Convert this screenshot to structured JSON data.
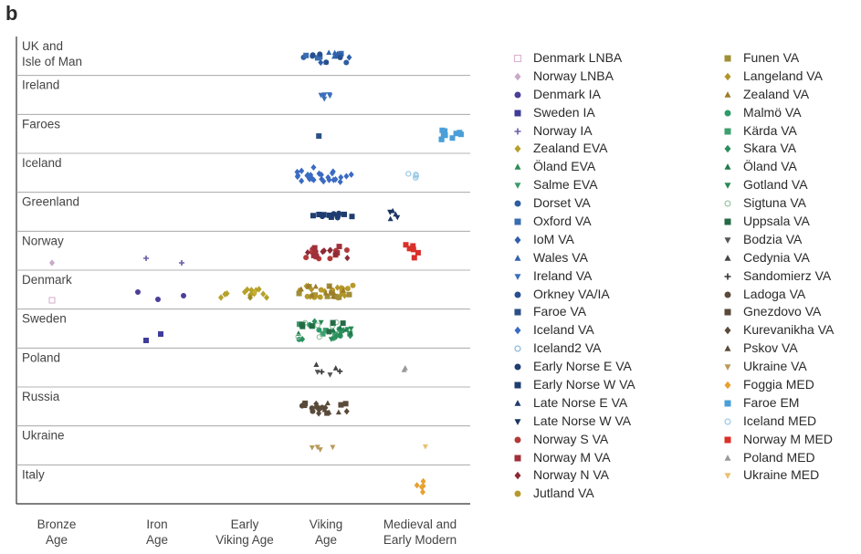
{
  "panel_label": "b",
  "chart_data": {
    "type": "scatter",
    "title": "",
    "xlabel": "",
    "ylabel": "",
    "x_categories": [
      [
        "Bronze",
        "Age"
      ],
      [
        "Iron",
        "Age"
      ],
      [
        "Early",
        "Viking Age"
      ],
      [
        "Viking",
        "Age"
      ],
      [
        "Medieval and",
        "Early Modern"
      ]
    ],
    "y_categories": [
      [
        "UK and",
        "Isle of Man"
      ],
      [
        "Ireland"
      ],
      [
        "Faroes"
      ],
      [
        "Iceland"
      ],
      [
        "Greenland"
      ],
      [
        "Norway"
      ],
      [
        "Denmark"
      ],
      [
        "Sweden"
      ],
      [
        "Poland"
      ],
      [
        "Russia"
      ],
      [
        "Ukraine"
      ],
      [
        "Italy"
      ]
    ],
    "grid": "horizontal separators between regions",
    "legend_position": "right, two columns",
    "series": [
      {
        "name": "Denmark LNBA",
        "color": "#d9b3d0",
        "marker": "square-open",
        "points": [
          [
            0,
            6,
            0.1
          ]
        ]
      },
      {
        "name": "Norway LNBA",
        "color": "#c7a9c9",
        "marker": "diamond",
        "points": [
          [
            0,
            5,
            0.2
          ]
        ]
      },
      {
        "name": "Denmark IA",
        "color": "#4a3f98",
        "marker": "circle",
        "points": [
          [
            1,
            6,
            -0.1
          ],
          [
            1,
            6,
            -0.35
          ],
          [
            1,
            6,
            0.25
          ]
        ]
      },
      {
        "name": "Sweden IA",
        "color": "#3f3c9a",
        "marker": "square",
        "points": [
          [
            1,
            6,
            0.3
          ],
          [
            1,
            7,
            0.25
          ],
          [
            1,
            7,
            0.6
          ]
        ]
      },
      {
        "name": "Norway IA",
        "color": "#6c5ca8",
        "marker": "plus",
        "points": [
          [
            1,
            5,
            -0.2
          ],
          [
            1,
            5,
            0.1
          ]
        ]
      },
      {
        "name": "Zealand EVA",
        "color": "#b6a12a",
        "marker": "diamond",
        "points": [
          [
            2,
            6,
            0
          ]
        ]
      },
      {
        "name": "Öland EVA",
        "color": "#2e8b57",
        "marker": "triangle-up",
        "points": []
      },
      {
        "name": "Salme EVA",
        "color": "#3a9d6a",
        "marker": "triangle-down",
        "points": []
      },
      {
        "name": "Dorset VA",
        "color": "#2d5fa0",
        "marker": "circle",
        "points": [
          [
            3,
            0,
            0
          ]
        ]
      },
      {
        "name": "Oxford VA",
        "color": "#3a6cb0",
        "marker": "square",
        "points": [
          [
            3,
            0,
            0
          ]
        ]
      },
      {
        "name": "IoM VA",
        "color": "#2f5faa",
        "marker": "diamond",
        "points": [
          [
            3,
            0,
            0
          ]
        ]
      },
      {
        "name": "Wales VA",
        "color": "#2f62b0",
        "marker": "triangle-up",
        "points": [
          [
            3,
            0,
            0
          ]
        ]
      },
      {
        "name": "Ireland VA",
        "color": "#3b6fbb",
        "marker": "triangle-down",
        "points": [
          [
            3,
            1,
            0
          ]
        ]
      },
      {
        "name": "Orkney VA/IA",
        "color": "#274f8f",
        "marker": "circle",
        "points": [
          [
            3,
            0,
            0
          ]
        ]
      },
      {
        "name": "Faroe VA",
        "color": "#2b4f86",
        "marker": "square",
        "points": [
          [
            3,
            2,
            0
          ]
        ]
      },
      {
        "name": "Iceland VA",
        "color": "#3a6bc2",
        "marker": "diamond",
        "points": [
          [
            3,
            3,
            0
          ]
        ]
      },
      {
        "name": "Iceland2 VA",
        "color": "#7fb0d8",
        "marker": "circle-open",
        "points": []
      },
      {
        "name": "Early Norse E VA",
        "color": "#1f3d70",
        "marker": "circle",
        "points": [
          [
            3,
            4,
            0
          ]
        ]
      },
      {
        "name": "Early Norse W VA",
        "color": "#1f3d70",
        "marker": "square",
        "points": [
          [
            3,
            4,
            0
          ]
        ]
      },
      {
        "name": "Late Norse E VA",
        "color": "#1f3a6a",
        "marker": "triangle-up",
        "points": [
          [
            4,
            4,
            0
          ]
        ]
      },
      {
        "name": "Late Norse W VA",
        "color": "#1a335e",
        "marker": "triangle-down",
        "points": [
          [
            4,
            4,
            0
          ]
        ]
      },
      {
        "name": "Norway S VA",
        "color": "#b23a3a",
        "marker": "circle",
        "points": [
          [
            3,
            5,
            0
          ]
        ]
      },
      {
        "name": "Norway M VA",
        "color": "#a0303a",
        "marker": "square",
        "points": [
          [
            3,
            5,
            0
          ]
        ]
      },
      {
        "name": "Norway N VA",
        "color": "#8c2a34",
        "marker": "diamond",
        "points": [
          [
            3,
            5,
            0
          ]
        ]
      },
      {
        "name": "Jutland VA",
        "color": "#b79a2b",
        "marker": "circle",
        "points": [
          [
            3,
            6,
            0
          ]
        ]
      },
      {
        "name": "Funen VA",
        "color": "#a08f36",
        "marker": "square",
        "points": [
          [
            3,
            6,
            0
          ]
        ]
      },
      {
        "name": "Langeland VA",
        "color": "#b3962a",
        "marker": "diamond",
        "points": [
          [
            3,
            6,
            0
          ]
        ]
      },
      {
        "name": "Zealand VA",
        "color": "#9c7c2a",
        "marker": "triangle-up",
        "points": [
          [
            3,
            6,
            0
          ]
        ]
      },
      {
        "name": "Malmö VA",
        "color": "#2f9a6a",
        "marker": "circle",
        "points": [
          [
            3,
            7,
            0
          ]
        ]
      },
      {
        "name": "Kärda VA",
        "color": "#3da06e",
        "marker": "square",
        "points": [
          [
            3,
            7,
            0
          ]
        ]
      },
      {
        "name": "Skara VA",
        "color": "#2c8f5e",
        "marker": "diamond",
        "points": [
          [
            3,
            7,
            0
          ]
        ]
      },
      {
        "name": "Öland VA",
        "color": "#1f7a4a",
        "marker": "triangle-up",
        "points": [
          [
            3,
            7,
            0
          ]
        ]
      },
      {
        "name": "Gotland VA",
        "color": "#2a8a55",
        "marker": "triangle-down",
        "points": [
          [
            3,
            7,
            0
          ]
        ]
      },
      {
        "name": "Sigtuna VA",
        "color": "#8fbf9f",
        "marker": "circle-open",
        "points": [
          [
            3,
            7,
            0
          ]
        ]
      },
      {
        "name": "Uppsala VA",
        "color": "#246b45",
        "marker": "square",
        "points": [
          [
            3,
            7,
            0
          ]
        ]
      },
      {
        "name": "Bodzia VA",
        "color": "#555555",
        "marker": "triangle-down",
        "points": [
          [
            3,
            8,
            0
          ]
        ]
      },
      {
        "name": "Cedynia VA",
        "color": "#444444",
        "marker": "triangle-up",
        "points": [
          [
            3,
            8,
            0
          ]
        ]
      },
      {
        "name": "Sandomierz VA",
        "color": "#333333",
        "marker": "plus",
        "points": [
          [
            3,
            8,
            0
          ]
        ]
      },
      {
        "name": "Ladoga VA",
        "color": "#5a4a3a",
        "marker": "circle",
        "points": [
          [
            3,
            9,
            0
          ]
        ]
      },
      {
        "name": "Gnezdovo VA",
        "color": "#5a4a3a",
        "marker": "square",
        "points": [
          [
            3,
            9,
            0
          ]
        ]
      },
      {
        "name": "Kurevanikha VA",
        "color": "#5a4a3a",
        "marker": "diamond",
        "points": [
          [
            3,
            9,
            0
          ]
        ]
      },
      {
        "name": "Pskov VA",
        "color": "#5a4a3a",
        "marker": "triangle-up",
        "points": [
          [
            3,
            9,
            0
          ]
        ]
      },
      {
        "name": "Ukraine VA",
        "color": "#b89a5a",
        "marker": "triangle-down",
        "points": [
          [
            3,
            10,
            0
          ]
        ]
      },
      {
        "name": "Foggia MED",
        "color": "#e8a030",
        "marker": "diamond",
        "points": [
          [
            4,
            11,
            0
          ]
        ]
      },
      {
        "name": "Faroe EM",
        "color": "#4a9fd8",
        "marker": "square",
        "points": [
          [
            4,
            2,
            0
          ]
        ]
      },
      {
        "name": "Iceland MED",
        "color": "#8fc3e3",
        "marker": "circle-open",
        "points": [
          [
            4,
            3,
            0
          ]
        ]
      },
      {
        "name": "Norway M MED",
        "color": "#d9302a",
        "marker": "square",
        "points": [
          [
            4,
            5,
            0
          ]
        ]
      },
      {
        "name": "Poland MED",
        "color": "#9a9a9a",
        "marker": "triangle-up",
        "points": [
          [
            4,
            8,
            0
          ]
        ]
      },
      {
        "name": "Ukraine MED",
        "color": "#e8c070",
        "marker": "triangle-down",
        "points": [
          [
            4,
            10,
            0
          ]
        ]
      }
    ]
  },
  "legend_col1": [
    "Denmark LNBA",
    "Norway LNBA",
    "Denmark IA",
    "Sweden IA",
    "Norway IA",
    "Zealand EVA",
    "Öland EVA",
    "Salme EVA",
    "Dorset VA",
    "Oxford VA",
    "IoM VA",
    "Wales VA",
    "Ireland VA",
    "Orkney VA/IA",
    "Faroe VA",
    "Iceland VA",
    "Iceland2 VA",
    "Early Norse E VA",
    "Early Norse W VA",
    "Late Norse E VA",
    "Late Norse W VA",
    "Norway S VA",
    "Norway M VA",
    "Norway N VA",
    "Jutland VA"
  ],
  "legend_col2": [
    "Funen VA",
    "Langeland VA",
    "Zealand VA",
    "Malmö VA",
    "Kärda VA",
    "Skara VA",
    "Öland VA",
    "Gotland VA",
    "Sigtuna VA",
    "Uppsala VA",
    "Bodzia VA",
    "Cedynia VA",
    "Sandomierz VA",
    "Ladoga VA",
    "Gnezdovo VA",
    "Kurevanikha VA",
    "Pskov VA",
    "Ukraine VA",
    "Foggia MED",
    "Faroe EM",
    "Iceland MED",
    "Norway M MED",
    "Poland MED",
    "Ukraine MED"
  ]
}
